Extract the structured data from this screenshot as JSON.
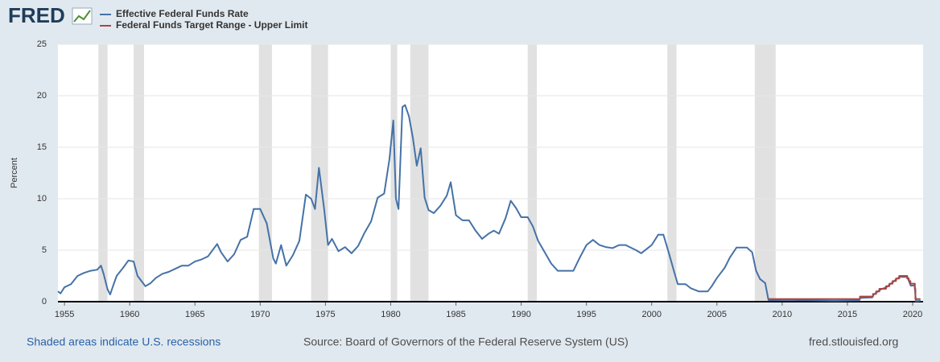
{
  "chart_data": {
    "type": "line",
    "logo": "FRED",
    "ylabel": "Percent",
    "notes": [
      "Shaded areas indicate U.S. recessions",
      "Source: Board of Governors of the Federal Reserve System (US)",
      "fred.stlouisfed.org"
    ],
    "xlim": [
      1954.5,
      2020.8
    ],
    "xticks": [
      1955,
      1960,
      1965,
      1970,
      1975,
      1980,
      1985,
      1990,
      1995,
      2000,
      2005,
      2010,
      2015,
      2020
    ],
    "ylim": [
      0,
      25
    ],
    "yticks": [
      0,
      5,
      10,
      15,
      20,
      25
    ],
    "grid": true,
    "recession_color": "#e1e1e1",
    "recessions": [
      [
        1957.6,
        1958.3
      ],
      [
        1960.3,
        1961.1
      ],
      [
        1969.9,
        1970.9
      ],
      [
        1973.9,
        1975.2
      ],
      [
        1980.0,
        1980.5
      ],
      [
        1981.5,
        1982.9
      ],
      [
        1990.5,
        1991.2
      ],
      [
        2001.2,
        2001.9
      ],
      [
        2007.9,
        2009.5
      ]
    ],
    "series": [
      {
        "name": "Effective Federal Funds Rate",
        "color": "#4572a7",
        "x": [
          1954.5,
          1954.7,
          1955.0,
          1955.5,
          1956.0,
          1956.5,
          1957.0,
          1957.5,
          1957.8,
          1958.0,
          1958.3,
          1958.5,
          1958.8,
          1959.0,
          1959.5,
          1959.9,
          1960.3,
          1960.6,
          1960.9,
          1961.2,
          1961.6,
          1962.0,
          1962.5,
          1963.0,
          1963.5,
          1964.0,
          1964.5,
          1965.0,
          1965.5,
          1966.0,
          1966.7,
          1967.0,
          1967.5,
          1968.0,
          1968.5,
          1969.0,
          1969.5,
          1970.0,
          1970.5,
          1971.0,
          1971.2,
          1971.6,
          1972.0,
          1972.5,
          1973.0,
          1973.5,
          1973.9,
          1974.2,
          1974.5,
          1974.9,
          1975.2,
          1975.5,
          1976.0,
          1976.5,
          1977.0,
          1977.5,
          1978.0,
          1978.5,
          1979.0,
          1979.5,
          1979.9,
          1980.2,
          1980.4,
          1980.6,
          1980.9,
          1981.1,
          1981.4,
          1981.7,
          1982.0,
          1982.3,
          1982.6,
          1982.9,
          1983.3,
          1983.8,
          1984.3,
          1984.6,
          1985.0,
          1985.5,
          1986.0,
          1986.5,
          1987.0,
          1987.5,
          1987.9,
          1988.3,
          1988.8,
          1989.2,
          1989.6,
          1990.0,
          1990.5,
          1990.9,
          1991.3,
          1991.8,
          1992.3,
          1992.8,
          1993.5,
          1994.0,
          1994.5,
          1995.0,
          1995.5,
          1996.0,
          1996.5,
          1997.0,
          1997.5,
          1998.0,
          1998.8,
          1999.2,
          1999.7,
          2000.0,
          2000.5,
          2000.9,
          2001.3,
          2001.7,
          2002.0,
          2002.6,
          2003.0,
          2003.6,
          2004.3,
          2004.6,
          2005.0,
          2005.6,
          2006.0,
          2006.5,
          2007.3,
          2007.7,
          2008.0,
          2008.3,
          2008.7,
          2008.95,
          2009.5,
          2010.5,
          2012.0,
          2014.0,
          2015.9,
          2016.0,
          2016.9,
          2017.0,
          2017.25,
          2017.5,
          2018.0,
          2018.25,
          2018.5,
          2018.75,
          2019.0,
          2019.6,
          2019.7,
          2019.85,
          2020.15,
          2020.25,
          2020.6
        ],
        "values": [
          1.0,
          0.8,
          1.4,
          1.7,
          2.5,
          2.8,
          3.0,
          3.1,
          3.5,
          2.7,
          1.2,
          0.7,
          1.8,
          2.5,
          3.3,
          4.0,
          3.9,
          2.5,
          2.0,
          1.5,
          1.8,
          2.3,
          2.7,
          2.9,
          3.2,
          3.5,
          3.5,
          3.9,
          4.1,
          4.4,
          5.6,
          4.8,
          3.9,
          4.6,
          6.0,
          6.3,
          9.0,
          9.0,
          7.6,
          4.2,
          3.7,
          5.5,
          3.5,
          4.5,
          5.9,
          10.4,
          10.0,
          9.0,
          13.0,
          9.0,
          5.5,
          6.1,
          4.9,
          5.3,
          4.7,
          5.4,
          6.7,
          7.8,
          10.1,
          10.5,
          13.8,
          17.6,
          10.0,
          9.0,
          18.9,
          19.1,
          18.0,
          15.9,
          13.2,
          14.9,
          10.1,
          8.9,
          8.6,
          9.3,
          10.3,
          11.6,
          8.4,
          7.9,
          7.9,
          6.9,
          6.1,
          6.6,
          6.9,
          6.6,
          8.1,
          9.8,
          9.1,
          8.2,
          8.2,
          7.3,
          5.9,
          4.8,
          3.7,
          3.0,
          3.0,
          3.0,
          4.3,
          5.5,
          6.0,
          5.5,
          5.3,
          5.2,
          5.5,
          5.5,
          5.0,
          4.7,
          5.2,
          5.5,
          6.5,
          6.5,
          4.8,
          3.0,
          1.7,
          1.7,
          1.3,
          1.0,
          1.0,
          1.5,
          2.3,
          3.3,
          4.3,
          5.25,
          5.25,
          4.8,
          3.0,
          2.2,
          1.8,
          0.16,
          0.16,
          0.18,
          0.14,
          0.09,
          0.13,
          0.36,
          0.41,
          0.66,
          0.91,
          1.16,
          1.41,
          1.68,
          1.91,
          2.19,
          2.4,
          2.4,
          2.04,
          1.55,
          1.58,
          0.05,
          0.09
        ]
      },
      {
        "name": "Federal Funds Target Range - Upper Limit",
        "color": "#aa4643",
        "x": [
          2008.96,
          2015.96,
          2015.96,
          2016.96,
          2016.96,
          2017.2,
          2017.2,
          2017.45,
          2017.45,
          2017.96,
          2017.96,
          2018.22,
          2018.22,
          2018.46,
          2018.46,
          2018.72,
          2018.72,
          2018.97,
          2018.97,
          2019.58,
          2019.58,
          2019.71,
          2019.71,
          2019.83,
          2019.83,
          2020.17,
          2020.17,
          2020.21,
          2020.21,
          2020.6
        ],
        "values": [
          0.25,
          0.25,
          0.5,
          0.5,
          0.75,
          0.75,
          1,
          1,
          1.25,
          1.25,
          1.5,
          1.5,
          1.75,
          1.75,
          2,
          2,
          2.25,
          2.25,
          2.5,
          2.5,
          2.25,
          2.25,
          2,
          2,
          1.75,
          1.75,
          1.25,
          1.25,
          0.25,
          0.25
        ]
      }
    ]
  }
}
